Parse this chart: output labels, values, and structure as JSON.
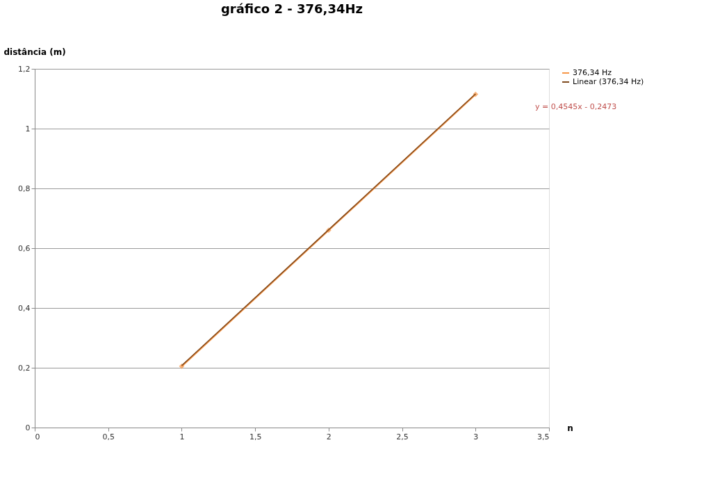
{
  "chart_data": {
    "type": "line",
    "title": "gráfico 2 - 376,34Hz",
    "xlabel": "n",
    "ylabel": "distância (m)",
    "x": [
      1,
      2,
      3
    ],
    "series": [
      {
        "name": "376,34 Hz",
        "color": "#f79646",
        "values": [
          0.205,
          0.66,
          1.115
        ],
        "marker": "diamond"
      },
      {
        "name": "Linear (376,34 Hz)",
        "color": "#7f4a1e",
        "x": [
          1,
          3
        ],
        "values": [
          0.2072,
          1.1162
        ],
        "marker": "none"
      }
    ],
    "xlim": [
      0,
      3.5
    ],
    "xticks": [
      0,
      {
        "value": 0.5,
        "label": "0,5"
      },
      1,
      {
        "value": 1.5,
        "label": "1,5"
      },
      2,
      {
        "value": 2.5,
        "label": "2,5"
      },
      3,
      {
        "value": 3.5,
        "label": "3,5"
      }
    ],
    "ylim": [
      0,
      1.2
    ],
    "yticks": [
      0,
      {
        "value": 0.2,
        "label": "0,2"
      },
      {
        "value": 0.4,
        "label": "0,4"
      },
      {
        "value": 0.6,
        "label": "0,6"
      },
      {
        "value": 0.8,
        "label": "0,8"
      },
      1,
      {
        "value": 1.2,
        "label": "1,2"
      }
    ],
    "annotations": [
      "y = 0,4545x - 0,2473"
    ],
    "grid": "y",
    "legend": "right",
    "line_style": "solid"
  }
}
